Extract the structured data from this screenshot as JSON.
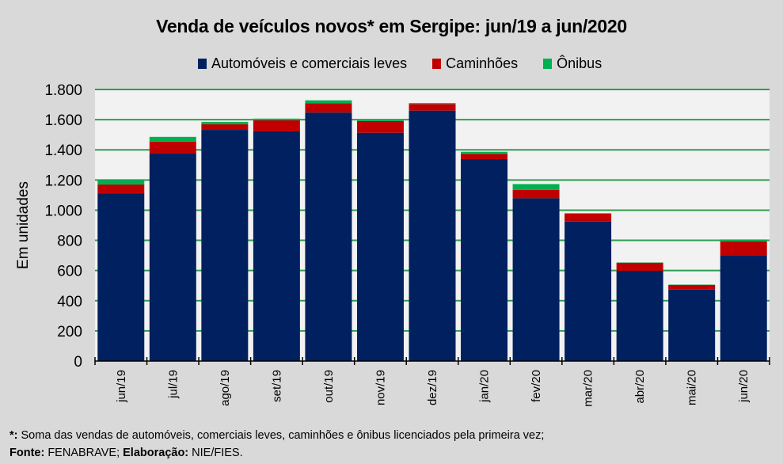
{
  "chart_data": {
    "type": "bar",
    "stacked": true,
    "title": "Venda de veículos novos* em Sergipe: jun/19 a jun/2020",
    "xlabel": "",
    "ylabel": "Em unidades",
    "ylim": [
      0,
      1800
    ],
    "yticks": [
      0,
      200,
      400,
      600,
      800,
      1000,
      1200,
      1400,
      1600,
      1800
    ],
    "ytick_labels": [
      "0",
      "200",
      "400",
      "600",
      "800",
      "1.000",
      "1.200",
      "1.400",
      "1.600",
      "1.800"
    ],
    "grid": true,
    "legend_position": "top",
    "categories": [
      "jun/19",
      "jul/19",
      "ago/19",
      "set/19",
      "out/19",
      "nov/19",
      "dez/19",
      "jan/20",
      "fev/20",
      "mar/20",
      "abr/20",
      "mai/20",
      "jun/20"
    ],
    "series": [
      {
        "name": "Automóveis e comerciais leves",
        "color": "#002060",
        "values": [
          1112,
          1375,
          1532,
          1522,
          1647,
          1513,
          1660,
          1338,
          1079,
          925,
          598,
          474,
          698
        ]
      },
      {
        "name": "Caminhões",
        "color": "#c00000",
        "values": [
          58,
          80,
          37,
          74,
          62,
          78,
          44,
          35,
          56,
          51,
          54,
          31,
          96
        ]
      },
      {
        "name": "Ônibus",
        "color": "#00b050",
        "values": [
          30,
          31,
          16,
          11,
          19,
          11,
          6,
          14,
          38,
          4,
          2,
          2,
          12
        ]
      }
    ]
  },
  "colors": {
    "background": "#d9d9d9",
    "plot_background": "#f2f2f2",
    "gridline": "#2e9e4f"
  },
  "footer": {
    "note_label": "*:",
    "note_text": " Soma das vendas de automóveis, comerciais leves, caminhões e ônibus licenciados pela primeira vez;",
    "source_label": "Fonte:",
    "source_text": " FENABRAVE; ",
    "elab_label": "Elaboração:",
    "elab_text": " NIE/FIES."
  }
}
